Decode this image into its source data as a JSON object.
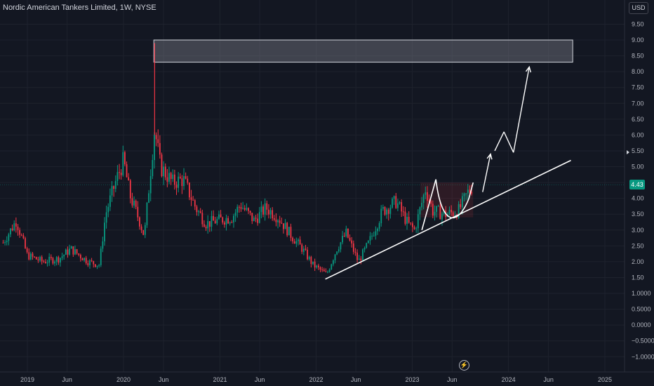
{
  "header": {
    "title": "Nordic American Tankers Limited, 1W, NYSE"
  },
  "currency_button": {
    "label": "USD"
  },
  "last_price": {
    "label": "4.43",
    "value": 4.43,
    "color": "#089981"
  },
  "colors": {
    "background": "#131722",
    "up": "#089981",
    "down": "#f23645",
    "drawing": "#ffffff"
  },
  "footer_icon": "lightning-icon",
  "chart_data": {
    "type": "candlestick",
    "interval": "1W",
    "y_axis": {
      "labels": [
        "9.50",
        "9.00",
        "8.50",
        "8.00",
        "7.50",
        "7.00",
        "6.50",
        "6.00",
        "5.50",
        "5.00",
        "4.50",
        "4.00",
        "3.50",
        "3.00",
        "2.50",
        "2.00",
        "1.50",
        "1.0000",
        "0.5000",
        "0.0000",
        "−0.5000",
        "−1.0000"
      ],
      "values": [
        9.5,
        9.0,
        8.5,
        8.0,
        7.5,
        7.0,
        6.5,
        6.0,
        5.5,
        5.0,
        4.5,
        4.0,
        3.5,
        3.0,
        2.5,
        2.0,
        1.5,
        1.0,
        0.5,
        0.0,
        -0.5,
        -1.0
      ],
      "range": [
        -1.3,
        10.3
      ]
    },
    "x_axis": {
      "labels": [
        "2019",
        "Jun",
        "2020",
        "Jun",
        "2021",
        "Jun",
        "2022",
        "Jun",
        "2023",
        "Jun",
        "2024",
        "Jun",
        "2025"
      ],
      "dates": [
        "2019-01-01",
        "2019-06-01",
        "2020-01-01",
        "2020-06-01",
        "2021-01-01",
        "2021-06-01",
        "2022-01-01",
        "2022-06-01",
        "2023-01-01",
        "2023-06-01",
        "2024-01-01",
        "2024-06-01",
        "2025-01-01"
      ]
    },
    "trend": [
      {
        "date": "2018-10-01",
        "price": 2.6
      },
      {
        "date": "2018-11-20",
        "price": 3.3
      },
      {
        "date": "2019-01-01",
        "price": 2.2
      },
      {
        "date": "2019-03-01",
        "price": 2.0
      },
      {
        "date": "2019-05-01",
        "price": 2.1
      },
      {
        "date": "2019-06-15",
        "price": 2.4
      },
      {
        "date": "2019-08-20",
        "price": 2.0
      },
      {
        "date": "2019-10-01",
        "price": 1.9
      },
      {
        "date": "2019-10-25",
        "price": 3.5
      },
      {
        "date": "2019-12-05",
        "price": 4.6
      },
      {
        "date": "2020-01-01",
        "price": 5.2
      },
      {
        "date": "2020-01-25",
        "price": 4.1
      },
      {
        "date": "2020-03-01",
        "price": 3.3
      },
      {
        "date": "2020-03-20",
        "price": 2.8
      },
      {
        "date": "2020-04-15",
        "price": 5.1
      },
      {
        "date": "2020-04-28",
        "price": 6.2
      },
      {
        "date": "2020-05-20",
        "price": 5.0
      },
      {
        "date": "2020-07-05",
        "price": 4.5
      },
      {
        "date": "2020-08-15",
        "price": 4.6
      },
      {
        "date": "2020-10-01",
        "price": 3.7
      },
      {
        "date": "2020-11-10",
        "price": 3.2
      },
      {
        "date": "2020-12-20",
        "price": 3.3
      },
      {
        "date": "2021-02-15",
        "price": 3.4
      },
      {
        "date": "2021-03-20",
        "price": 3.8
      },
      {
        "date": "2021-05-10",
        "price": 3.3
      },
      {
        "date": "2021-06-25",
        "price": 3.7
      },
      {
        "date": "2021-08-10",
        "price": 3.4
      },
      {
        "date": "2021-10-01",
        "price": 2.8
      },
      {
        "date": "2021-11-10",
        "price": 2.4
      },
      {
        "date": "2021-12-20",
        "price": 1.9
      },
      {
        "date": "2022-02-10",
        "price": 1.6
      },
      {
        "date": "2022-03-20",
        "price": 2.4
      },
      {
        "date": "2022-04-25",
        "price": 2.9
      },
      {
        "date": "2022-06-10",
        "price": 2.0
      },
      {
        "date": "2022-07-20",
        "price": 2.6
      },
      {
        "date": "2022-09-10",
        "price": 3.6
      },
      {
        "date": "2022-11-01",
        "price": 3.9
      },
      {
        "date": "2022-12-15",
        "price": 3.2
      },
      {
        "date": "2023-01-10",
        "price": 3.0
      },
      {
        "date": "2023-02-20",
        "price": 4.3
      },
      {
        "date": "2023-03-20",
        "price": 3.6
      },
      {
        "date": "2023-05-10",
        "price": 3.5
      },
      {
        "date": "2023-06-25",
        "price": 3.6
      },
      {
        "date": "2023-08-01",
        "price": 4.2
      },
      {
        "date": "2023-08-20",
        "price": 4.43
      }
    ],
    "annotations": {
      "target_zone": {
        "from_date": "2020-04-25",
        "to_date": "2024-09-01",
        "low": 8.3,
        "high": 9.0
      },
      "spike_wick": {
        "date": "2020-04-28",
        "high": 8.9
      },
      "resistance_level": 4.5,
      "rising_trendline": [
        {
          "date": "2022-02-05",
          "price": 1.45
        },
        {
          "date": "2024-08-25",
          "price": 5.2
        }
      ],
      "projected_path": [
        {
          "date": "2023-09-25",
          "price": 4.2
        },
        {
          "date": "2023-10-25",
          "price": 5.4
        },
        {
          "date": "2023-11-10",
          "price": 5.5
        },
        {
          "date": "2023-12-15",
          "price": 6.1
        },
        {
          "date": "2024-01-20",
          "price": 5.45
        },
        {
          "date": "2024-03-20",
          "price": 8.15
        }
      ],
      "cup_pattern": {
        "left_date": "2023-02-01",
        "right_date": "2023-08-20",
        "bottom": 3.4,
        "rim": 4.5
      }
    }
  }
}
